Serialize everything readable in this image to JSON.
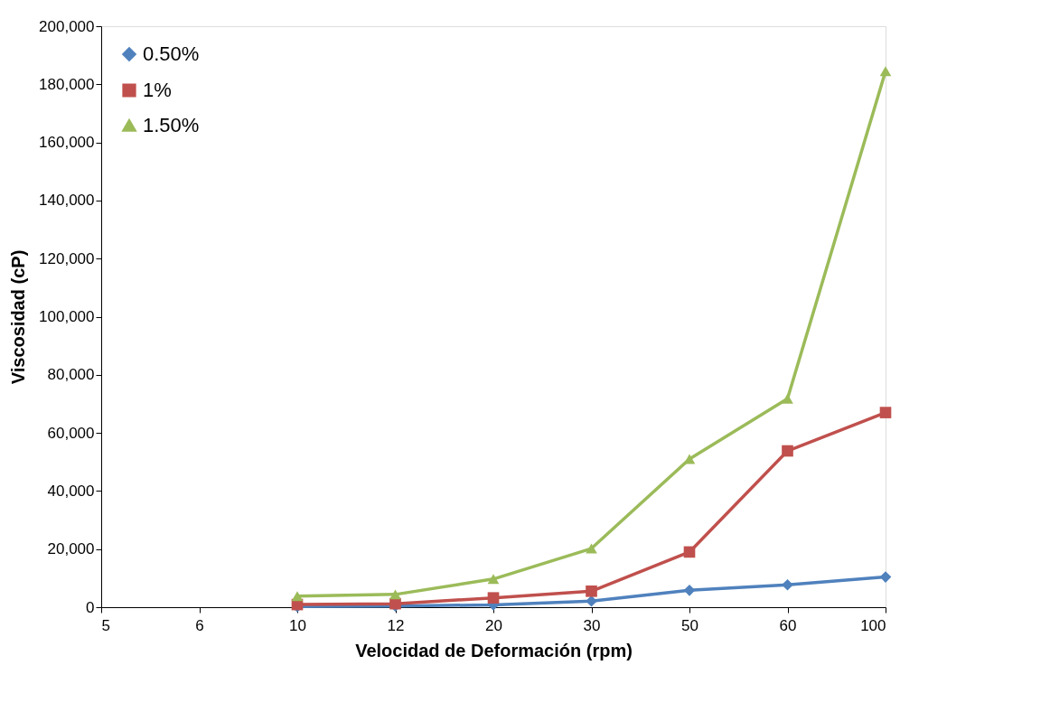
{
  "chart_data": {
    "type": "line",
    "xlabel": "Velocidad de Deformación (rpm)",
    "ylabel": "Viscosidad (cP)",
    "categories": [
      "5",
      "6",
      "10",
      "12",
      "20",
      "30",
      "50",
      "60",
      "100"
    ],
    "series": [
      {
        "name": "0.50%",
        "color": "#4f81bd",
        "marker": "diamond",
        "values": [
          null,
          null,
          200,
          400,
          800,
          2100,
          5800,
          7700,
          10400
        ]
      },
      {
        "name": "1%",
        "color": "#c0504d",
        "marker": "square",
        "values": [
          null,
          null,
          900,
          1200,
          3200,
          5500,
          19000,
          53800,
          67000
        ]
      },
      {
        "name": "1.50%",
        "color": "#9bbb59",
        "marker": "triangle",
        "values": [
          null,
          null,
          3800,
          4400,
          9700,
          20200,
          51000,
          71800,
          184500
        ]
      }
    ],
    "ylim": [
      0,
      200000
    ],
    "yticks": [
      0,
      {
        "value": 20000,
        "label": "20,000"
      },
      {
        "value": 40000,
        "label": "40,000"
      },
      {
        "value": 60000,
        "label": "60,000"
      },
      {
        "value": 80000,
        "label": "80,000"
      },
      {
        "value": 100000,
        "label": "100,000"
      },
      {
        "value": 120000,
        "label": "120,000"
      },
      {
        "value": 140000,
        "label": "140,000"
      },
      {
        "value": 160000,
        "label": "160,000"
      },
      {
        "value": 180000,
        "label": "180,000"
      },
      {
        "value": 200000,
        "label": "200,000"
      }
    ],
    "grid": false,
    "legend": "top left",
    "line_style": "solid"
  }
}
